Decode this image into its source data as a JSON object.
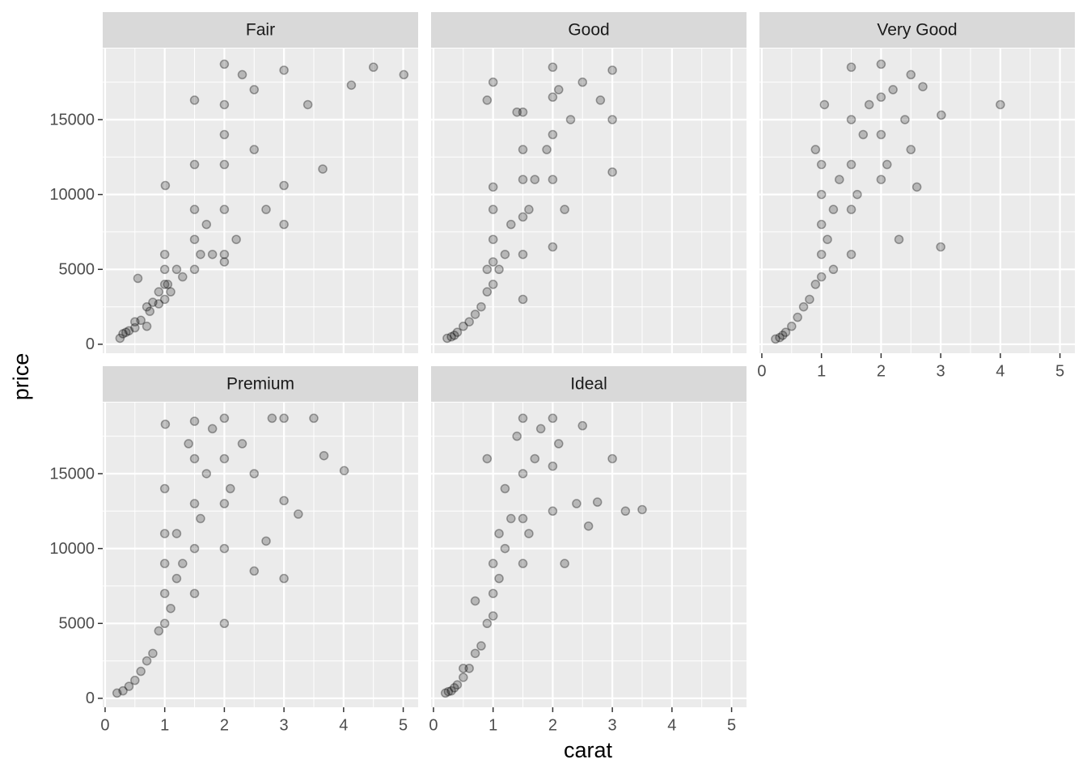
{
  "chart_data": {
    "type": "scatter",
    "x_label": "carat",
    "y_label": "price",
    "color": "#000000",
    "xlim": [
      -0.04,
      5.25
    ],
    "ylim": [
      -599,
      19748
    ],
    "xticks": [
      0,
      1,
      2,
      3,
      4,
      5
    ],
    "yticks": [
      0,
      5000,
      10000,
      15000
    ],
    "grid": true,
    "facets": [
      {
        "name": "Fair",
        "x": [
          0.25,
          0.3,
          0.35,
          0.4,
          0.5,
          0.5,
          0.55,
          0.6,
          0.7,
          0.7,
          0.75,
          0.8,
          0.9,
          0.9,
          1.0,
          1.0,
          1.0,
          1.0,
          1.01,
          1.05,
          1.1,
          1.2,
          1.3,
          1.5,
          1.5,
          1.5,
          1.5,
          1.5,
          1.6,
          1.7,
          1.8,
          2.0,
          2.0,
          2.0,
          2.0,
          2.0,
          2.0,
          2.2,
          2.5,
          2.5,
          3.0,
          3.0,
          3.0,
          3.4,
          3.65,
          4.13,
          4.5,
          5.01,
          2.3,
          2.7,
          2.0
        ],
        "y": [
          400,
          700,
          800,
          900,
          1100,
          1500,
          4400,
          1600,
          1200,
          2500,
          2200,
          2800,
          2700,
          3500,
          3000,
          4000,
          5000,
          6000,
          10600,
          4000,
          3500,
          5000,
          4500,
          5000,
          7000,
          9000,
          12000,
          16300,
          6000,
          8000,
          6000,
          6000,
          9000,
          12000,
          14000,
          16000,
          18700,
          7000,
          13000,
          17000,
          18300,
          10600,
          8000,
          16000,
          11700,
          17300,
          18500,
          18000,
          18000,
          9000,
          5500
        ]
      },
      {
        "name": "Good",
        "x": [
          0.23,
          0.3,
          0.35,
          0.4,
          0.5,
          0.6,
          0.7,
          0.8,
          0.9,
          0.9,
          1.0,
          1.0,
          1.0,
          1.0,
          1.0,
          1.1,
          1.2,
          1.3,
          1.5,
          1.5,
          1.5,
          1.5,
          1.5,
          1.5,
          1.6,
          1.7,
          1.9,
          2.0,
          2.0,
          2.0,
          2.0,
          2.0,
          2.1,
          2.2,
          2.3,
          2.5,
          2.8,
          3.0,
          3.0,
          3.0,
          0.9,
          1.4,
          1.0
        ],
        "y": [
          400,
          500,
          600,
          800,
          1200,
          1500,
          2000,
          2500,
          3500,
          5000,
          4000,
          5500,
          7000,
          9000,
          10500,
          5000,
          6000,
          8000,
          3000,
          6000,
          8500,
          11000,
          13000,
          15500,
          9000,
          11000,
          13000,
          6500,
          11000,
          14000,
          16500,
          18500,
          17000,
          9000,
          15000,
          17500,
          16300,
          18300,
          11500,
          15000,
          16300,
          15500,
          17500
        ]
      },
      {
        "name": "Very Good",
        "x": [
          0.23,
          0.3,
          0.35,
          0.4,
          0.5,
          0.6,
          0.7,
          0.8,
          0.9,
          1.0,
          1.0,
          1.0,
          1.0,
          1.0,
          1.1,
          1.2,
          1.2,
          1.3,
          1.5,
          1.5,
          1.5,
          1.5,
          1.5,
          1.6,
          1.7,
          1.8,
          2.0,
          2.0,
          2.0,
          2.0,
          2.1,
          2.2,
          2.4,
          2.5,
          2.5,
          2.6,
          2.7,
          3.0,
          3.01,
          4.0,
          1.05,
          0.9,
          2.3
        ],
        "y": [
          350,
          450,
          600,
          800,
          1200,
          1800,
          2500,
          3000,
          4000,
          4500,
          6000,
          8000,
          10000,
          12000,
          7000,
          9000,
          5000,
          11000,
          6000,
          9000,
          12000,
          15000,
          18500,
          10000,
          14000,
          16000,
          11000,
          14000,
          16500,
          18700,
          12000,
          17000,
          15000,
          13000,
          18000,
          10500,
          17200,
          6500,
          15300,
          16000,
          16000,
          13000,
          7000
        ]
      },
      {
        "name": "Premium",
        "x": [
          0.2,
          0.3,
          0.4,
          0.5,
          0.6,
          0.7,
          0.8,
          0.9,
          1.0,
          1.0,
          1.0,
          1.0,
          1.0,
          1.01,
          1.1,
          1.2,
          1.2,
          1.3,
          1.5,
          1.5,
          1.5,
          1.5,
          1.5,
          1.6,
          1.7,
          1.8,
          2.0,
          2.0,
          2.0,
          2.0,
          2.0,
          2.1,
          2.3,
          2.5,
          2.5,
          2.7,
          3.0,
          3.0,
          3.0,
          3.24,
          3.5,
          3.67,
          4.01,
          1.4,
          2.8
        ],
        "y": [
          350,
          500,
          800,
          1200,
          1800,
          2500,
          3000,
          4500,
          5000,
          7000,
          9000,
          11000,
          14000,
          18300,
          6000,
          8000,
          11000,
          9000,
          7000,
          10000,
          13000,
          16000,
          18500,
          12000,
          15000,
          18000,
          5000,
          10000,
          13000,
          16000,
          18700,
          14000,
          17000,
          15000,
          8500,
          10500,
          18700,
          8000,
          13200,
          12300,
          18700,
          16200,
          15200,
          17000,
          18700
        ]
      },
      {
        "name": "Ideal",
        "x": [
          0.2,
          0.25,
          0.3,
          0.35,
          0.4,
          0.5,
          0.5,
          0.6,
          0.7,
          0.8,
          0.9,
          1.0,
          1.0,
          1.0,
          1.1,
          1.1,
          1.2,
          1.2,
          0.9,
          1.3,
          1.5,
          1.5,
          1.5,
          1.5,
          1.6,
          1.7,
          1.8,
          2.0,
          2.0,
          2.0,
          2.1,
          2.2,
          2.4,
          2.5,
          2.6,
          2.75,
          3.0,
          3.22,
          3.5,
          1.4,
          0.7
        ],
        "y": [
          350,
          450,
          500,
          700,
          900,
          1400,
          2000,
          2000,
          3000,
          3500,
          5000,
          5500,
          7000,
          9000,
          8000,
          11000,
          10000,
          14000,
          16000,
          12000,
          9000,
          12000,
          15000,
          18700,
          11000,
          16000,
          18000,
          12500,
          15500,
          18700,
          17000,
          9000,
          13000,
          18200,
          11500,
          13100,
          16000,
          12500,
          12600,
          17500,
          6500
        ]
      }
    ]
  }
}
